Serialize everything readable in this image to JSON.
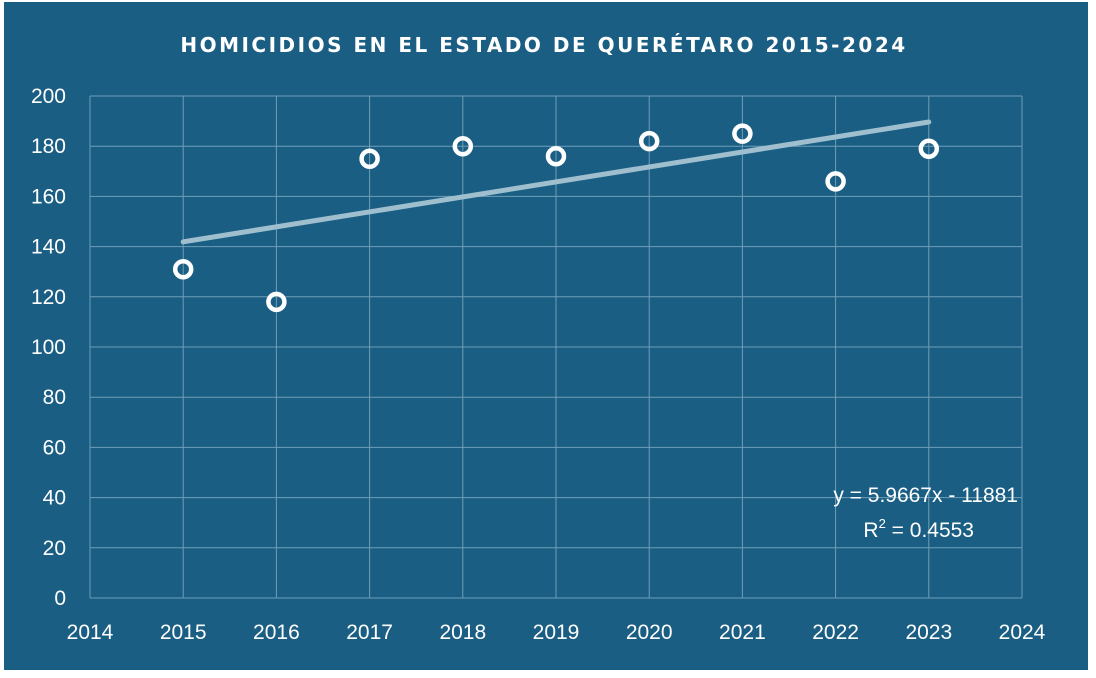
{
  "chart_data": {
    "type": "scatter",
    "title": "HOMICIDIOS EN EL ESTADO DE QUERÉTARO 2015-2024",
    "xlabel": "",
    "ylabel": "",
    "xlim": [
      2014,
      2024
    ],
    "ylim": [
      0,
      200
    ],
    "xticks": [
      2014,
      2015,
      2016,
      2017,
      2018,
      2019,
      2020,
      2021,
      2022,
      2023,
      2024
    ],
    "yticks": [
      0,
      20,
      40,
      60,
      80,
      100,
      120,
      140,
      160,
      180,
      200
    ],
    "grid": true,
    "series": [
      {
        "x": [
          2015,
          2016,
          2017,
          2018,
          2019,
          2020,
          2021,
          2022,
          2023
        ],
        "y": [
          131,
          118,
          175,
          180,
          176,
          182,
          185,
          166,
          179
        ],
        "marker": "hollow-circle",
        "color": "#ffffff"
      }
    ],
    "trendline": {
      "type": "linear",
      "slope": 5.9667,
      "intercept": -11881,
      "x_start": 2015,
      "x_end": 2023,
      "color": "#9fbfcf",
      "equation_text": "y = 5.9667x - 11881",
      "r2_prefix": "R",
      "r2_superscript": "2",
      "r2_suffix": " = 0.4553"
    },
    "background_color": "#1a5e84",
    "grid_color": "#6f9fb8"
  }
}
